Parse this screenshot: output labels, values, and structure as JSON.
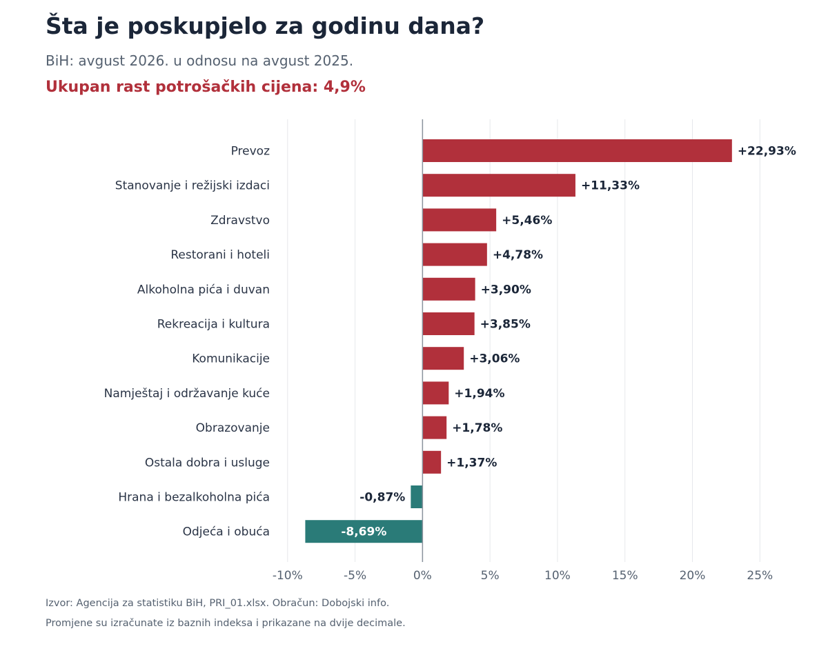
{
  "header": {
    "title": "Šta je poskupjelo za godinu dana?",
    "subtitle": "BiH: avgust 2026. u odnosu na avgust 2025.",
    "highlight": "Ukupan rast potrošačkih cijena: 4,9%"
  },
  "footer": {
    "source_line": "Izvor: Agencija za statistiku BiH, PRI_01.xlsx. Obračun: Dobojski info.",
    "note_line": "Promjene su izračunate iz baznih indeksa i prikazane na dvije decimale."
  },
  "chart_data": {
    "type": "bar",
    "orientation": "horizontal",
    "categories": [
      "Prevoz",
      "Stanovanje i režijski izdaci",
      "Zdravstvo",
      "Restorani i hoteli",
      "Alkoholna pića i duvan",
      "Rekreacija i kultura",
      "Komunikacije",
      "Namještaj i održavanje kuće",
      "Obrazovanje",
      "Ostala dobra i usluge",
      "Hrana i bezalkoholna pića",
      "Odjeća i obuća"
    ],
    "values": [
      22.93,
      11.33,
      5.46,
      4.78,
      3.9,
      3.85,
      3.06,
      1.94,
      1.78,
      1.37,
      -0.87,
      -8.69
    ],
    "data_labels": [
      "+22,93%",
      "+11,33%",
      "+5,46%",
      "+4,78%",
      "+3,90%",
      "+3,85%",
      "+3,06%",
      "+1,94%",
      "+1,78%",
      "+1,37%",
      "-0,87%",
      "-8,69%"
    ],
    "x_ticks": [
      -10,
      -5,
      0,
      5,
      10,
      15,
      20,
      25
    ],
    "x_tick_labels": [
      "-10%",
      "-5%",
      "0%",
      "5%",
      "10%",
      "15%",
      "20%",
      "25%"
    ],
    "xlim": [
      -10.5,
      25.7
    ],
    "grid": "vertical",
    "colors": {
      "positive": "#b1303b",
      "negative": "#2a7b78",
      "grid": "#e6e8eb",
      "zero_line": "#8a929c",
      "text": "#1b2638",
      "muted": "#556170"
    }
  }
}
